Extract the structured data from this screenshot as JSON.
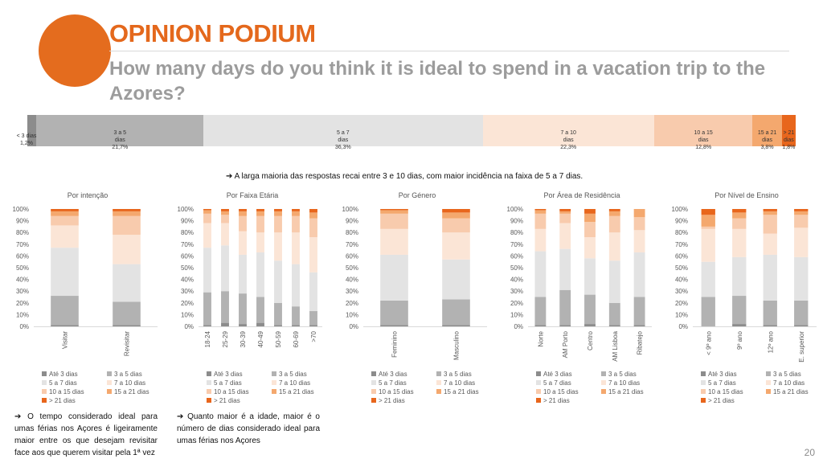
{
  "header": {
    "title": "OPINION PODIUM",
    "subtitle": "How many days do you think it is ideal to spend in a vacation trip to the Azores?"
  },
  "colors": {
    "accent": "#e46c1e",
    "series": [
      "#8c8c8c",
      "#b2b2b2",
      "#e3e3e3",
      "#fbe5d6",
      "#f8cbad",
      "#f4a86e",
      "#e8661c"
    ]
  },
  "overall": {
    "segments": [
      {
        "line1": "< 3 dias",
        "line2": "",
        "value": 1.2,
        "value_label": "1,2%"
      },
      {
        "line1": "3 a 5",
        "line2": "dias",
        "value": 21.7,
        "value_label": "21,7%"
      },
      {
        "line1": "5 a 7",
        "line2": "dias",
        "value": 36.3,
        "value_label": "36,3%"
      },
      {
        "line1": "7 a 10",
        "line2": "dias",
        "value": 22.3,
        "value_label": "22,3%"
      },
      {
        "line1": "10 a 15",
        "line2": "dias",
        "value": 12.8,
        "value_label": "12,8%"
      },
      {
        "line1": "15 a 21",
        "line2": "dias",
        "value": 3.8,
        "value_label": "3,8%"
      },
      {
        "line1": "> 21",
        "line2": "dias",
        "value": 1.8,
        "value_label": "1,8%"
      }
    ]
  },
  "summary": "A larga maioria das respostas recai entre 3 e 10 dias, com maior incidência na faixa de 5 a 7 dias.",
  "legend": [
    "Até 3 dias",
    "3 a 5 dias",
    "5 a 7 dias",
    "7 a 10 dias",
    "10 a 15 dias",
    "15 a 21 dias",
    "> 21 dias"
  ],
  "chart_data": [
    {
      "type": "bar",
      "stacked": true,
      "title": "Por intenção",
      "categories": [
        "Visitar",
        "Revisitar"
      ],
      "ylim": [
        0,
        100
      ],
      "yticks": [
        "0%",
        "10%",
        "20%",
        "30%",
        "40%",
        "50%",
        "60%",
        "70%",
        "80%",
        "90%",
        "100%"
      ],
      "series": [
        {
          "name": "Até 3 dias",
          "values": [
            1,
            1
          ]
        },
        {
          "name": "3 a 5 dias",
          "values": [
            25,
            20
          ]
        },
        {
          "name": "5 a 7 dias",
          "values": [
            41,
            32
          ]
        },
        {
          "name": "7 a 10 dias",
          "values": [
            19,
            25
          ]
        },
        {
          "name": "10 a 15 dias",
          "values": [
            8,
            16
          ]
        },
        {
          "name": "15 a 21 dias",
          "values": [
            4,
            4
          ]
        },
        {
          "name": "> 21 dias",
          "values": [
            2,
            2
          ]
        }
      ]
    },
    {
      "type": "bar",
      "stacked": true,
      "title": "Por Faixa Etária",
      "categories": [
        "18-24",
        "25-29",
        "30-39",
        "40-49",
        "50-59",
        "60-69",
        ">70"
      ],
      "ylim": [
        0,
        100
      ],
      "yticks": [
        "0%",
        "10%",
        "20%",
        "30%",
        "40%",
        "50%",
        "60%",
        "70%",
        "80%",
        "90%",
        "100%"
      ],
      "series": [
        {
          "name": "Até 3 dias",
          "values": [
            1,
            3,
            2,
            3,
            1,
            1,
            1
          ]
        },
        {
          "name": "3 a 5 dias",
          "values": [
            28,
            27,
            26,
            22,
            19,
            16,
            12
          ]
        },
        {
          "name": "5 a 7 dias",
          "values": [
            38,
            39,
            33,
            38,
            36,
            36,
            33
          ]
        },
        {
          "name": "7 a 10 dias",
          "values": [
            21,
            19,
            20,
            17,
            24,
            27,
            30
          ]
        },
        {
          "name": "10 a 15 dias",
          "values": [
            8,
            7,
            13,
            14,
            14,
            14,
            16
          ]
        },
        {
          "name": "15 a 21 dias",
          "values": [
            3,
            3,
            4,
            4,
            4,
            4,
            5
          ]
        },
        {
          "name": "> 21 dias",
          "values": [
            1,
            2,
            2,
            2,
            2,
            2,
            3
          ]
        }
      ]
    },
    {
      "type": "bar",
      "stacked": true,
      "title": "Por Género",
      "categories": [
        "Feminino",
        "Masculino"
      ],
      "ylim": [
        0,
        100
      ],
      "yticks": [
        "0%",
        "10%",
        "20%",
        "30%",
        "40%",
        "50%",
        "60%",
        "70%",
        "80%",
        "90%",
        "100%"
      ],
      "series": [
        {
          "name": "Até 3 dias",
          "values": [
            1,
            1
          ]
        },
        {
          "name": "3 a 5 dias",
          "values": [
            21,
            22
          ]
        },
        {
          "name": "5 a 7 dias",
          "values": [
            39,
            34
          ]
        },
        {
          "name": "7 a 10 dias",
          "values": [
            22,
            23
          ]
        },
        {
          "name": "10 a 15 dias",
          "values": [
            13,
            12
          ]
        },
        {
          "name": "15 a 21 dias",
          "values": [
            3,
            5
          ]
        },
        {
          "name": "> 21 dias",
          "values": [
            1,
            3
          ]
        }
      ]
    },
    {
      "type": "bar",
      "stacked": true,
      "title": "Por Área de Residência",
      "categories": [
        "Norte",
        "AM Porto",
        "Centro",
        "AM Lisboa",
        "Ribatejo"
      ],
      "ylim": [
        0,
        100
      ],
      "yticks": [
        "0%",
        "10%",
        "20%",
        "30%",
        "40%",
        "50%",
        "60%",
        "70%",
        "80%",
        "90%",
        "100%"
      ],
      "series": [
        {
          "name": "Até 3 dias",
          "values": [
            1,
            1,
            2,
            1,
            1
          ]
        },
        {
          "name": "3 a 5 dias",
          "values": [
            24,
            30,
            25,
            19,
            24
          ]
        },
        {
          "name": "5 a 7 dias",
          "values": [
            39,
            35,
            31,
            36,
            38
          ]
        },
        {
          "name": "7 a 10 dias",
          "values": [
            19,
            22,
            18,
            24,
            19
          ]
        },
        {
          "name": "10 a 15 dias",
          "values": [
            13,
            8,
            13,
            14,
            11
          ]
        },
        {
          "name": "15 a 21 dias",
          "values": [
            3,
            2,
            7,
            4,
            7
          ]
        },
        {
          "name": "> 21 dias",
          "values": [
            1,
            2,
            4,
            2,
            0
          ]
        }
      ]
    },
    {
      "type": "bar",
      "stacked": true,
      "title": "Por Nível de Ensino",
      "categories": [
        "< 9º ano",
        "9º ano",
        "12º ano",
        "E. superior"
      ],
      "ylim": [
        0,
        100
      ],
      "yticks": [
        "0%",
        "10%",
        "20%",
        "30%",
        "40%",
        "50%",
        "60%",
        "70%",
        "80%",
        "90%",
        "100%"
      ],
      "series": [
        {
          "name": "Até 3 dias",
          "values": [
            0,
            2,
            1,
            1
          ]
        },
        {
          "name": "3 a 5 dias",
          "values": [
            25,
            24,
            21,
            21
          ]
        },
        {
          "name": "5 a 7 dias",
          "values": [
            30,
            33,
            39,
            37
          ]
        },
        {
          "name": "7 a 10 dias",
          "values": [
            28,
            24,
            18,
            25
          ]
        },
        {
          "name": "10 a 15 dias",
          "values": [
            2,
            9,
            16,
            11
          ]
        },
        {
          "name": "15 a 21 dias",
          "values": [
            10,
            5,
            3,
            3
          ]
        },
        {
          "name": "> 21 dias",
          "values": [
            5,
            3,
            2,
            2
          ]
        }
      ]
    }
  ],
  "notes": {
    "left": "O tempo considerado ideal para umas férias nos Açores é ligeiramente maior entre os que desejam revisitar face aos que querem visitar pela 1ª vez",
    "right": "Quanto maior é a idade, maior é o número de dias considerado ideal para umas férias nos Açores"
  },
  "page_number": "20"
}
